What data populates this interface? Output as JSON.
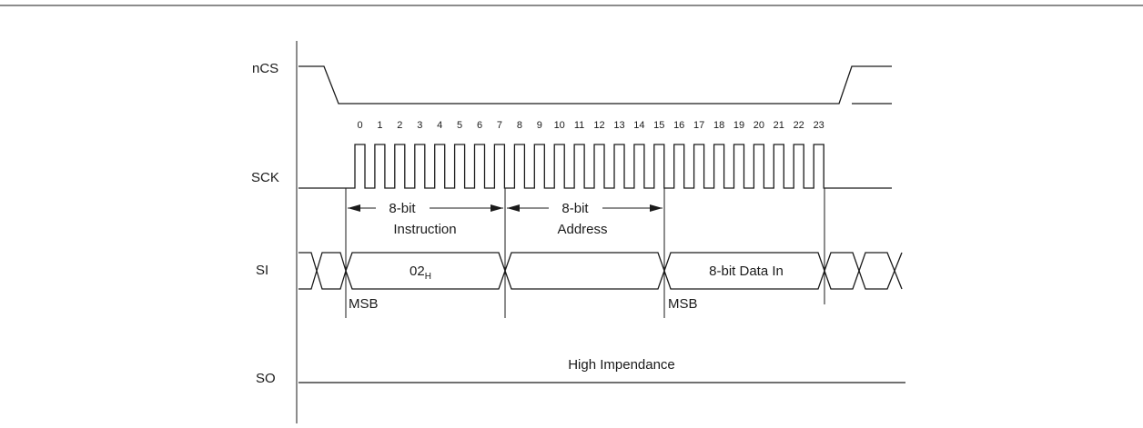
{
  "signals": {
    "ncs": "nCS",
    "sck": "SCK",
    "si": "SI",
    "so": "SO"
  },
  "clock_ticks": [
    "0",
    "1",
    "2",
    "3",
    "4",
    "5",
    "6",
    "7",
    "8",
    "9",
    "10",
    "11",
    "12",
    "13",
    "14",
    "15",
    "16",
    "17",
    "18",
    "19",
    "20",
    "21",
    "22",
    "23"
  ],
  "spans": {
    "instruction": {
      "bits": "8-bit",
      "name": "Instruction"
    },
    "address": {
      "bits": "8-bit",
      "name": "Address"
    }
  },
  "si_fields": {
    "opcode_main": "02",
    "opcode_sub": "H",
    "data_in": "8-bit Data In"
  },
  "markers": {
    "msb_instruction": "MSB",
    "msb_data": "MSB"
  },
  "so_state": "High Impendance"
}
